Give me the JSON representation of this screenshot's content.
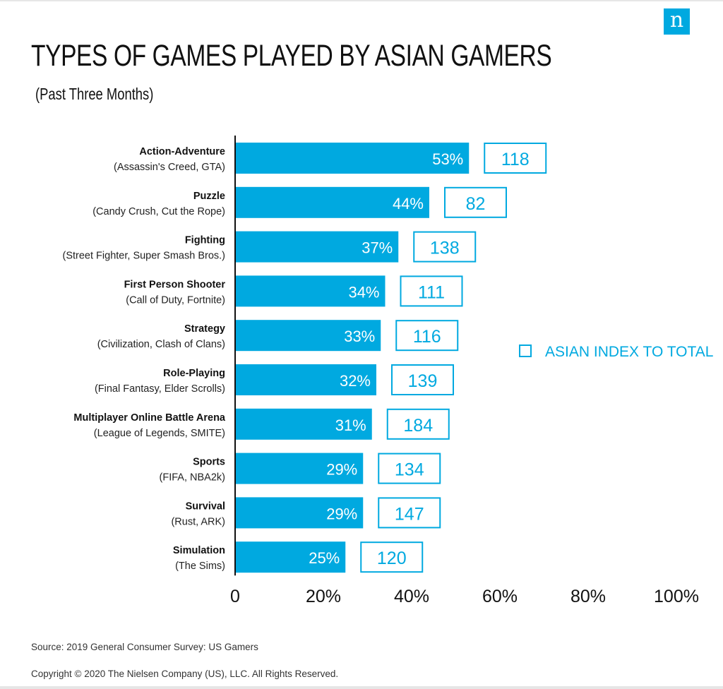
{
  "header": {
    "logo_letter": "n",
    "title": "TYPES OF GAMES PLAYED BY ASIAN GAMERS",
    "subtitle": "(Past Three Months)"
  },
  "colors": {
    "bar": "#00a9e0",
    "index_outline": "#00a9e0",
    "text": "#111111"
  },
  "chart_data": {
    "type": "bar",
    "orientation": "horizontal",
    "categories": [
      {
        "name": "Action-Adventure",
        "examples": "(Assassin's Creed, GTA)"
      },
      {
        "name": "Puzzle",
        "examples": "(Candy Crush, Cut the Rope)"
      },
      {
        "name": "Fighting",
        "examples": "(Street Fighter, Super Smash Bros.)"
      },
      {
        "name": "First Person Shooter",
        "examples": "(Call of Duty, Fortnite)"
      },
      {
        "name": "Strategy",
        "examples": "(Civilization, Clash of Clans)"
      },
      {
        "name": "Role-Playing",
        "examples": "(Final Fantasy, Elder Scrolls)"
      },
      {
        "name": "Multiplayer Online Battle Arena",
        "examples": "(League of Legends, SMITE)"
      },
      {
        "name": "Sports",
        "examples": "(FIFA, NBA2k)"
      },
      {
        "name": "Survival",
        "examples": "(Rust, ARK)"
      },
      {
        "name": "Simulation",
        "examples": "(The Sims)"
      }
    ],
    "values": [
      53,
      44,
      37,
      34,
      33,
      32,
      31,
      29,
      29,
      25
    ],
    "value_labels": [
      "53%",
      "44%",
      "37%",
      "34%",
      "33%",
      "32%",
      "31%",
      "29%",
      "29%",
      "25%"
    ],
    "index_series": {
      "name": "ASIAN INDEX TO TOTAL",
      "values": [
        118,
        82,
        138,
        111,
        116,
        139,
        184,
        134,
        147,
        120
      ]
    },
    "xlim": [
      0,
      100
    ],
    "xticks": [
      0,
      20,
      40,
      60,
      80,
      100
    ],
    "xtick_labels": [
      "0",
      "20%",
      "40%",
      "60%",
      "80%",
      "100%"
    ],
    "grid": false,
    "legend_position": "right"
  },
  "footer": {
    "source": "Source: 2019 General Consumer Survey: US Gamers",
    "copyright": "Copyright © 2020 The Nielsen Company (US), LLC. All Rights Reserved."
  }
}
